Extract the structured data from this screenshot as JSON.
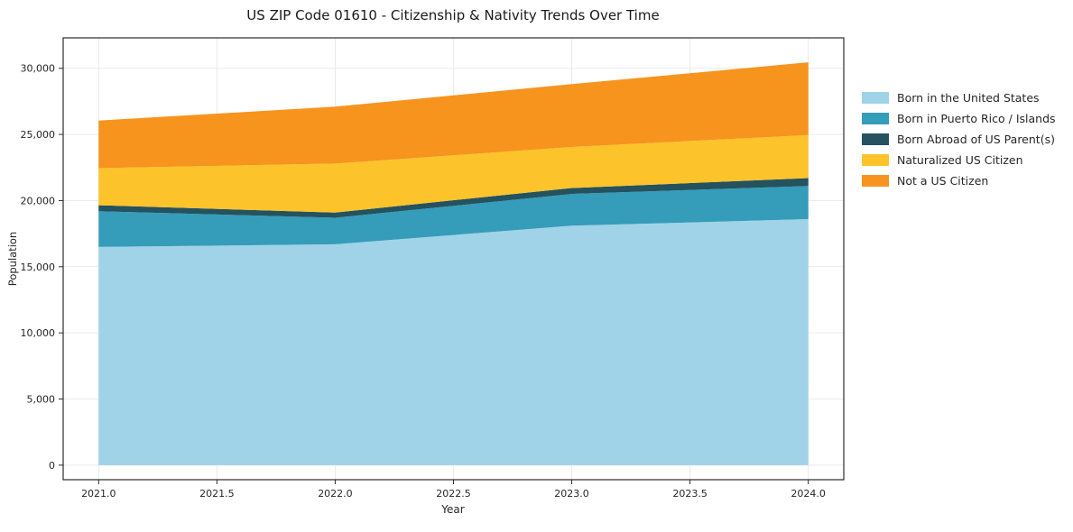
{
  "chart_data": {
    "type": "area",
    "stacked": true,
    "title": "US ZIP Code 01610 - Citizenship & Nativity Trends Over Time",
    "xlabel": "Year",
    "ylabel": "Population",
    "x": [
      2021,
      2022,
      2023,
      2024
    ],
    "series": [
      {
        "name": "Born in the United States",
        "color": "#a0d3e8",
        "values": [
          16500,
          16700,
          18100,
          18600
        ]
      },
      {
        "name": "Born in Puerto Rico / Islands",
        "color": "#359cba",
        "values": [
          2700,
          2000,
          2400,
          2500
        ]
      },
      {
        "name": "Born Abroad of US Parent(s)",
        "color": "#24525f",
        "values": [
          450,
          400,
          450,
          600
        ]
      },
      {
        "name": "Naturalized US Citizen",
        "color": "#fdc32b",
        "values": [
          2800,
          3700,
          3100,
          3250
        ]
      },
      {
        "name": "Not a US Citizen",
        "color": "#f6941e",
        "values": [
          3600,
          4300,
          4750,
          5500
        ]
      }
    ],
    "xticks": [
      2021.0,
      2021.5,
      2022.0,
      2022.5,
      2023.0,
      2023.5,
      2024.0
    ],
    "xtick_labels": [
      "2021.0",
      "2021.5",
      "2022.0",
      "2022.5",
      "2023.0",
      "2023.5",
      "2024.0"
    ],
    "yticks": [
      0,
      5000,
      10000,
      15000,
      20000,
      25000,
      30000
    ],
    "ytick_labels": [
      "0",
      "5,000",
      "10,000",
      "15,000",
      "20,000",
      "25,000",
      "30,000"
    ],
    "xlim": [
      2020.85,
      2024.15
    ],
    "ylim": [
      -1100,
      32300
    ],
    "grid": true,
    "legend_position": "right"
  }
}
